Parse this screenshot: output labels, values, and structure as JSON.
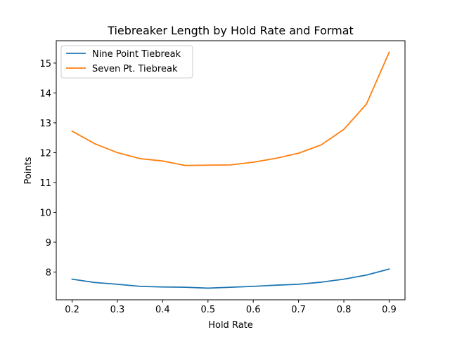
{
  "chart_data": {
    "type": "line",
    "title": "Tiebreaker Length by Hold Rate and Format",
    "xlabel": "Hold Rate",
    "ylabel": "Points",
    "xlim": [
      0.165,
      0.935
    ],
    "ylim": [
      7.07,
      15.75
    ],
    "xticks": [
      0.2,
      0.3,
      0.4,
      0.5,
      0.6,
      0.7,
      0.8,
      0.9
    ],
    "xtick_labels": [
      "0.2",
      "0.3",
      "0.4",
      "0.5",
      "0.6",
      "0.7",
      "0.8",
      "0.9"
    ],
    "yticks": [
      8,
      9,
      10,
      11,
      12,
      13,
      14,
      15
    ],
    "ytick_labels": [
      "8",
      "9",
      "10",
      "11",
      "12",
      "13",
      "14",
      "15"
    ],
    "grid": false,
    "legend_position": "top-left",
    "x": [
      0.2,
      0.25,
      0.3,
      0.35,
      0.4,
      0.45,
      0.5,
      0.55,
      0.6,
      0.65,
      0.7,
      0.75,
      0.8,
      0.85,
      0.9
    ],
    "series": [
      {
        "name": "Nine Point Tiebreak",
        "color": "#1f77b4",
        "values": [
          7.76,
          7.65,
          7.59,
          7.52,
          7.5,
          7.49,
          7.46,
          7.49,
          7.52,
          7.56,
          7.59,
          7.66,
          7.76,
          7.9,
          8.1
        ]
      },
      {
        "name": "Seven Pt. Tiebreak",
        "color": "#ff7f0e",
        "values": [
          12.72,
          12.3,
          12.0,
          11.8,
          11.72,
          11.57,
          11.58,
          11.59,
          11.68,
          11.81,
          11.98,
          12.26,
          12.78,
          13.63,
          15.36
        ]
      }
    ]
  }
}
